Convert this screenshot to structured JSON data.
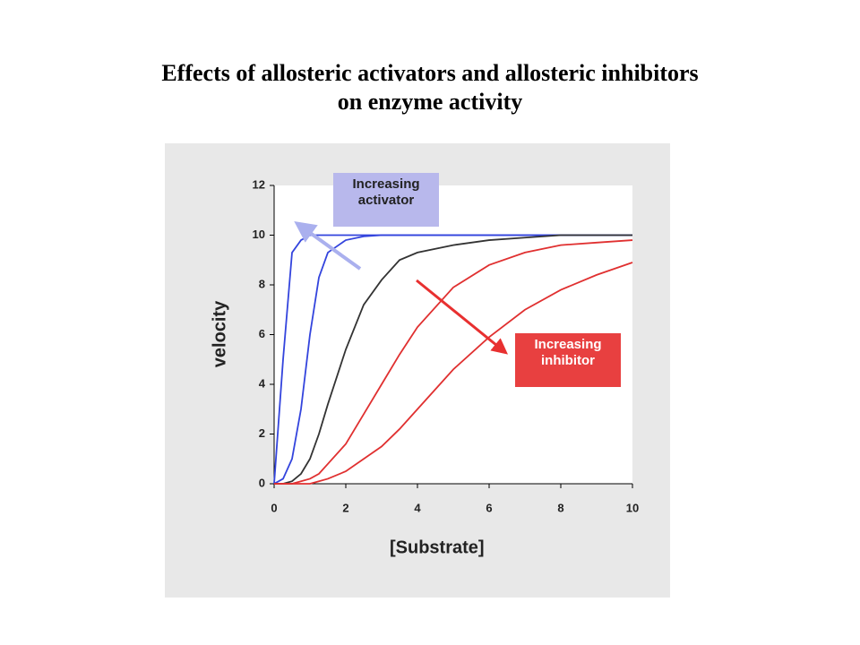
{
  "chart_data": {
    "type": "line",
    "title": "Effects of allosteric activators and allosteric inhibitors on enzyme activity",
    "xlabel": "[Substrate]",
    "ylabel": "velocity",
    "annotations": [
      {
        "text": "Increasing activator",
        "color": "#b8b8ec"
      },
      {
        "text": "Increasing inhibitor",
        "color": "#e84040"
      }
    ],
    "x": [
      0,
      0.25,
      0.5,
      0.75,
      1,
      1.25,
      1.5,
      2,
      2.5,
      3,
      3.5,
      4,
      5,
      6,
      7,
      8,
      9,
      10
    ],
    "series": [
      {
        "color": "#3344dd",
        "values": [
          0,
          5,
          9.3,
          9.8,
          10,
          10,
          10,
          10,
          10,
          10,
          10,
          10,
          10,
          10,
          10,
          10,
          10,
          10
        ]
      },
      {
        "color": "#3344dd",
        "values": [
          0,
          0.2,
          1,
          3,
          6,
          8.3,
          9.3,
          9.8,
          9.95,
          10,
          10,
          10,
          10,
          10,
          10,
          10,
          10,
          10
        ]
      },
      {
        "color": "#333333",
        "values": [
          0,
          0,
          0.1,
          0.4,
          1,
          2,
          3.2,
          5.4,
          7.2,
          8.2,
          9,
          9.3,
          9.6,
          9.8,
          9.9,
          10,
          10,
          10
        ]
      },
      {
        "color": "#e03030",
        "values": [
          0,
          0,
          0,
          0.1,
          0.2,
          0.4,
          0.8,
          1.6,
          2.8,
          4,
          5.2,
          6.3,
          7.9,
          8.8,
          9.3,
          9.6,
          9.7,
          9.8
        ]
      },
      {
        "color": "#e03030",
        "values": [
          0,
          0,
          0,
          0,
          0,
          0.1,
          0.2,
          0.5,
          1,
          1.5,
          2.2,
          3,
          4.6,
          5.9,
          7,
          7.8,
          8.4,
          8.9
        ]
      }
    ],
    "xlim": [
      0,
      10
    ],
    "xticks": [
      0,
      2,
      4,
      6,
      8,
      10
    ],
    "ylim": [
      0,
      12
    ],
    "yticks": [
      0,
      2,
      4,
      6,
      8,
      10,
      12
    ]
  }
}
